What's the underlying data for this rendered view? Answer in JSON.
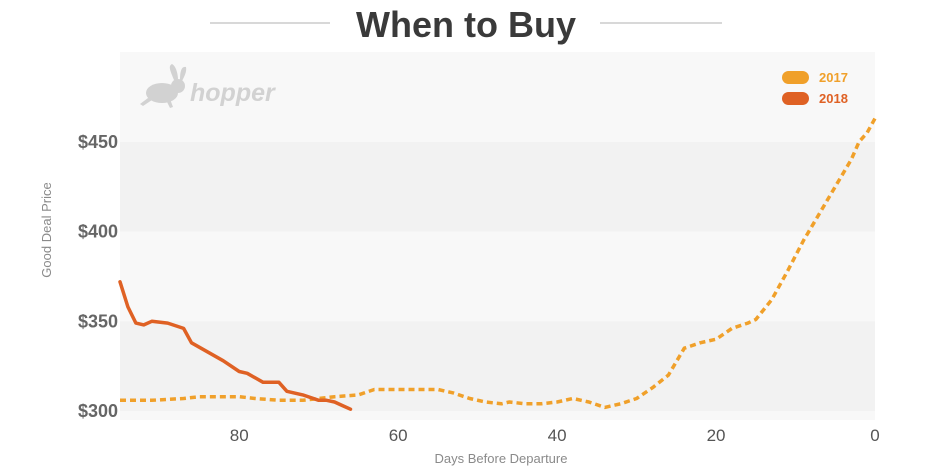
{
  "brand": {
    "name": "hopper"
  },
  "colors": {
    "series_2017": "#f0a02a",
    "series_2018": "#df6124",
    "band_dark": "#f2f2f2",
    "band_light": "#f8f8f8",
    "title_rule": "#cccccc"
  },
  "chart_data": {
    "type": "line",
    "title": "When to Buy",
    "xlabel": "Days Before Departure",
    "ylabel": "Good Deal Price",
    "xlim": [
      95,
      0
    ],
    "ylim": [
      295,
      500
    ],
    "x_ticks": [
      80,
      60,
      40,
      20,
      0
    ],
    "y_ticks": [
      300,
      350,
      400,
      450
    ],
    "x_tick_labels": [
      "80",
      "60",
      "40",
      "20",
      "0"
    ],
    "y_tick_labels": [
      "$300",
      "$350",
      "$400",
      "$450"
    ],
    "grid": "alternating horizontal bands",
    "legend_position": "top-right",
    "legend": [
      "2017",
      "2018"
    ],
    "series": [
      {
        "name": "2017",
        "style": "dashed",
        "x": [
          95,
          91,
          87,
          85,
          83,
          80,
          78,
          75,
          72,
          70,
          68,
          65,
          63,
          60,
          57,
          55,
          53,
          51,
          49,
          47,
          46,
          44,
          42,
          40,
          38,
          36,
          34,
          32,
          30,
          28,
          26,
          24,
          22,
          20,
          18,
          16,
          15,
          13,
          11,
          9,
          7,
          5,
          3,
          2,
          1,
          0
        ],
        "y": [
          306,
          306,
          307,
          308,
          308,
          308,
          307,
          306,
          306,
          307,
          308,
          309,
          312,
          312,
          312,
          312,
          310,
          307,
          305,
          304,
          305,
          304,
          304,
          305,
          307,
          305,
          302,
          304,
          307,
          313,
          320,
          335,
          338,
          340,
          346,
          349,
          351,
          362,
          378,
          395,
          410,
          425,
          440,
          450,
          455,
          463
        ]
      },
      {
        "name": "2018",
        "style": "solid",
        "x": [
          95,
          94,
          93,
          92,
          91,
          89,
          87,
          86,
          84,
          82,
          80,
          79,
          77,
          75,
          74,
          72,
          70,
          69,
          68,
          67,
          66
        ],
        "y": [
          372,
          358,
          349,
          348,
          350,
          349,
          346,
          338,
          333,
          328,
          322,
          321,
          316,
          316,
          311,
          309,
          306,
          306,
          305,
          303,
          301
        ]
      }
    ]
  }
}
